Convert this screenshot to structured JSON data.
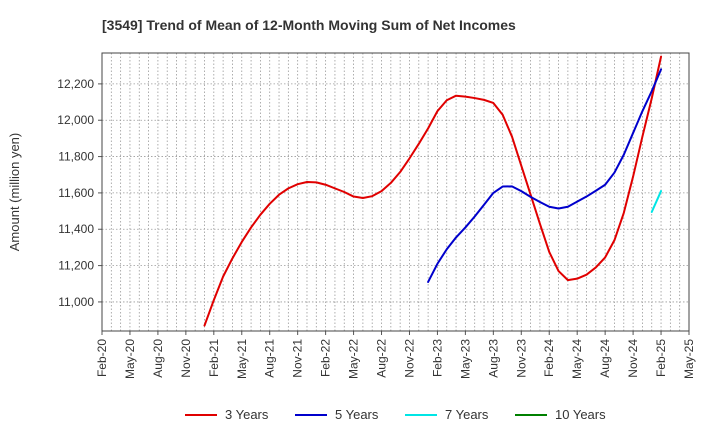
{
  "chart_data": {
    "type": "line",
    "title": "[3549]  Trend of Mean of 12-Month Moving Sum of Net Incomes",
    "ylabel": "Amount (million yen)",
    "xlabel": "",
    "x_tick_labels": [
      "Feb-20",
      "May-20",
      "Aug-20",
      "Nov-20",
      "Feb-21",
      "May-21",
      "Aug-21",
      "Nov-21",
      "Feb-22",
      "May-22",
      "Aug-22",
      "Nov-22",
      "Feb-23",
      "May-23",
      "Aug-23",
      "Nov-23",
      "Feb-24",
      "May-24",
      "Aug-24",
      "Nov-24",
      "Feb-25",
      "May-25"
    ],
    "y_ticks": [
      11000,
      11200,
      11400,
      11600,
      11800,
      12000,
      12200
    ],
    "y_tick_labels": [
      "11,000",
      "11,200",
      "11,400",
      "11,600",
      "11,800",
      "12,000",
      "12,200"
    ],
    "ylim": [
      10840,
      12370
    ],
    "grid": true,
    "legend_position": "bottom",
    "series": [
      {
        "name": "3 Years",
        "color": "#e00000",
        "points": [
          [
            "Jan-21",
            10870
          ],
          [
            "Feb-21",
            11010
          ],
          [
            "Mar-21",
            11140
          ],
          [
            "Apr-21",
            11240
          ],
          [
            "May-21",
            11330
          ],
          [
            "Jun-21",
            11410
          ],
          [
            "Jul-21",
            11480
          ],
          [
            "Aug-21",
            11540
          ],
          [
            "Sep-21",
            11590
          ],
          [
            "Oct-21",
            11625
          ],
          [
            "Nov-21",
            11648
          ],
          [
            "Dec-21",
            11660
          ],
          [
            "Jan-22",
            11658
          ],
          [
            "Feb-22",
            11645
          ],
          [
            "Mar-22",
            11625
          ],
          [
            "Apr-22",
            11605
          ],
          [
            "May-22",
            11580
          ],
          [
            "Jun-22",
            11572
          ],
          [
            "Jul-22",
            11582
          ],
          [
            "Aug-22",
            11610
          ],
          [
            "Sep-22",
            11655
          ],
          [
            "Oct-22",
            11715
          ],
          [
            "Nov-22",
            11790
          ],
          [
            "Dec-22",
            11870
          ],
          [
            "Jan-23",
            11955
          ],
          [
            "Feb-23",
            12050
          ],
          [
            "Mar-23",
            12110
          ],
          [
            "Apr-23",
            12135
          ],
          [
            "May-23",
            12130
          ],
          [
            "Jun-23",
            12122
          ],
          [
            "Jul-23",
            12112
          ],
          [
            "Aug-23",
            12095
          ],
          [
            "Sep-23",
            12030
          ],
          [
            "Oct-23",
            11910
          ],
          [
            "Nov-23",
            11750
          ],
          [
            "Dec-23",
            11590
          ],
          [
            "Jan-24",
            11430
          ],
          [
            "Feb-24",
            11275
          ],
          [
            "Mar-24",
            11170
          ],
          [
            "Apr-24",
            11120
          ],
          [
            "May-24",
            11128
          ],
          [
            "Jun-24",
            11150
          ],
          [
            "Jul-24",
            11190
          ],
          [
            "Aug-24",
            11245
          ],
          [
            "Sep-24",
            11340
          ],
          [
            "Oct-24",
            11490
          ],
          [
            "Nov-24",
            11690
          ],
          [
            "Dec-24",
            11910
          ],
          [
            "Jan-25",
            12120
          ],
          [
            "Feb-25",
            12350
          ]
        ]
      },
      {
        "name": "5 Years",
        "color": "#0000cc",
        "points": [
          [
            "Jan-23",
            11110
          ],
          [
            "Feb-23",
            11210
          ],
          [
            "Mar-23",
            11290
          ],
          [
            "Apr-23",
            11355
          ],
          [
            "May-23",
            11410
          ],
          [
            "Jun-23",
            11470
          ],
          [
            "Jul-23",
            11535
          ],
          [
            "Aug-23",
            11600
          ],
          [
            "Sep-23",
            11635
          ],
          [
            "Oct-23",
            11636
          ],
          [
            "Nov-23",
            11610
          ],
          [
            "Dec-23",
            11578
          ],
          [
            "Jan-24",
            11550
          ],
          [
            "Feb-24",
            11524
          ],
          [
            "Mar-24",
            11514
          ],
          [
            "Apr-24",
            11524
          ],
          [
            "May-24",
            11552
          ],
          [
            "Jun-24",
            11580
          ],
          [
            "Jul-24",
            11612
          ],
          [
            "Aug-24",
            11645
          ],
          [
            "Sep-24",
            11712
          ],
          [
            "Oct-24",
            11810
          ],
          [
            "Nov-24",
            11930
          ],
          [
            "Dec-24",
            12050
          ],
          [
            "Jan-25",
            12160
          ],
          [
            "Feb-25",
            12280
          ]
        ]
      },
      {
        "name": "7 Years",
        "color": "#00e5e5",
        "points": [
          [
            "Jan-25",
            11495
          ],
          [
            "Feb-25",
            11610
          ]
        ]
      },
      {
        "name": "10 Years",
        "color": "#008000",
        "points": []
      }
    ]
  }
}
